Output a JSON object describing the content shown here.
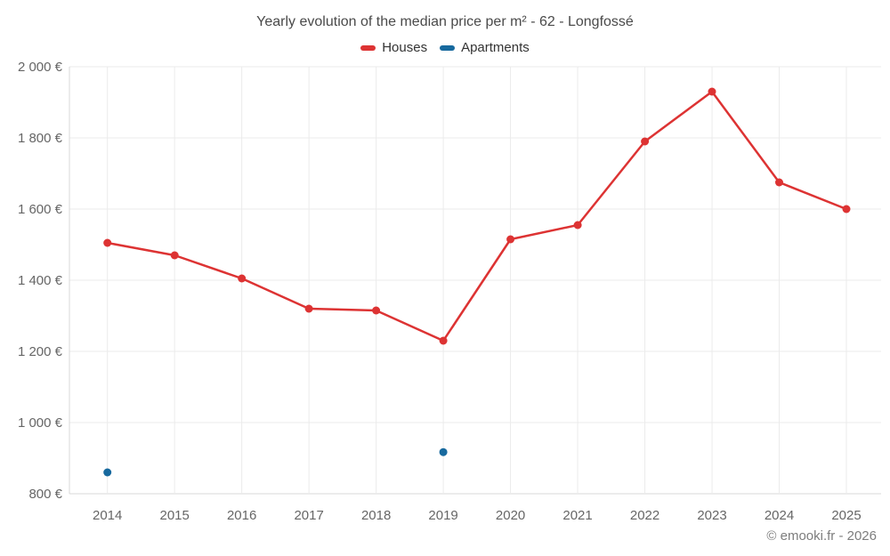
{
  "chart": {
    "title": "Yearly evolution of the median price per m² - 62 - Longfossé"
  },
  "legend": {
    "items": [
      {
        "label": "Houses",
        "color": "#dd3333"
      },
      {
        "label": "Apartments",
        "color": "#17699e"
      }
    ]
  },
  "footer": {
    "copyright": "© emooki.fr - 2026"
  },
  "chart_data": {
    "type": "line",
    "title": "Yearly evolution of the median price per m² - 62 - Longfossé",
    "categories": [
      "2014",
      "2015",
      "2016",
      "2017",
      "2018",
      "2019",
      "2020",
      "2021",
      "2022",
      "2023",
      "2024",
      "2025"
    ],
    "series": [
      {
        "name": "Houses",
        "type": "line",
        "color": "#dd3333",
        "values": [
          1505,
          1470,
          1405,
          1320,
          1315,
          1230,
          1515,
          1555,
          1790,
          1930,
          1675,
          1600
        ]
      },
      {
        "name": "Apartments",
        "type": "scatter",
        "color": "#17699e",
        "values": [
          860,
          null,
          null,
          null,
          null,
          917,
          null,
          null,
          null,
          null,
          null,
          null
        ]
      }
    ],
    "xlabel": "",
    "ylabel": "",
    "ylim": [
      800,
      2000
    ],
    "ytick_step": 200,
    "ytick_suffix": " €",
    "grid": true,
    "legend_position": "top"
  }
}
